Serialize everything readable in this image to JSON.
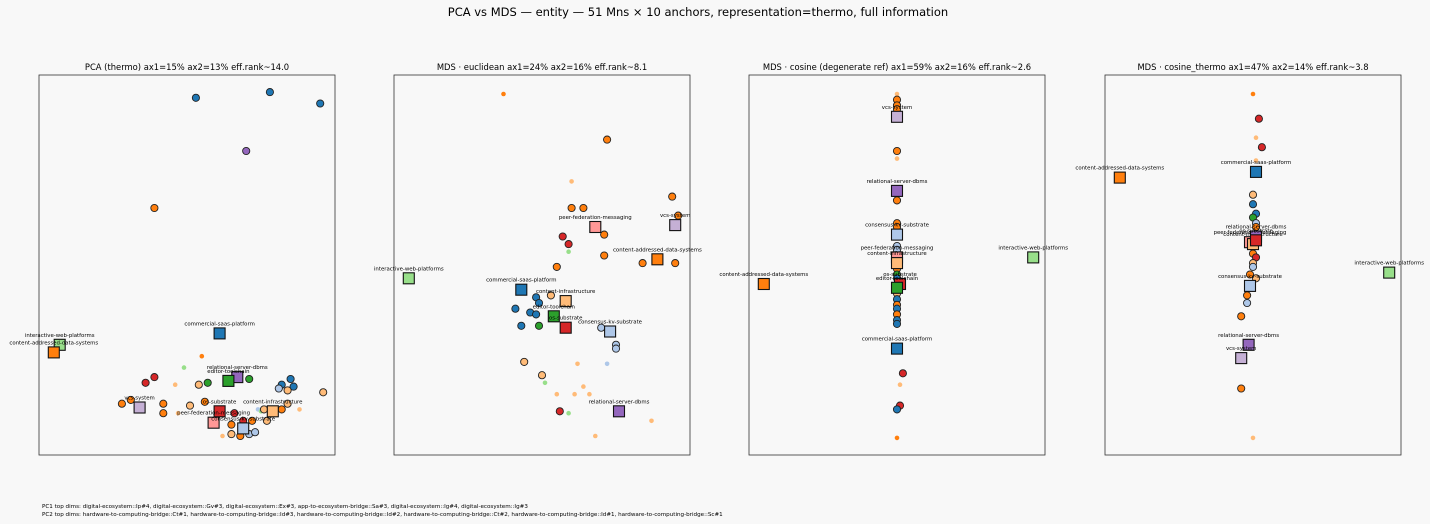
{
  "figure": {
    "suptitle": "PCA vs MDS — entity — 51 Mns × 10 anchors, representation=thermo, full information",
    "footer_pc1": "PC1 top dims: digital-ecosystem::Ip#4, digital-ecosystem::Gv#3, digital-ecosystem::Ex#3, app-to-ecosystem-bridge::Sa#3, digital-ecosystem::Ig#4, digital-ecosystem::Ig#3",
    "footer_pc2": "PC2 top dims: hardware-to-computing-bridge::Ct#1, hardware-to-computing-bridge::Id#3, hardware-to-computing-bridge::Id#2, hardware-to-computing-bridge::Ct#2, hardware-to-computing-bridge::Id#1, hardware-to-computing-bridge::Sc#1"
  },
  "colors": {
    "vcs-system": "#c5b0d5",
    "relational-server-dbms": "#9467bd",
    "commercial-saas-platform": "#1f77b4",
    "consensus-kv-substrate": "#aec7e8",
    "peer-federation-messaging": "#ff9896",
    "content-infrastructure": "#ffbb78",
    "editor-toolchain": "#2ca02c",
    "os-substrate": "#d62728",
    "interactive-web-platforms": "#98df8a",
    "content-addressed-data-systems": "#ff7f0e",
    "orange": "#ff7f0e",
    "light-orange": "#ffbb78",
    "red": "#d62728",
    "blue": "#1f77b4",
    "light-blue": "#aec7e8",
    "purple": "#9467bd",
    "green": "#2ca02c",
    "light-green": "#98df8a"
  },
  "chart_data": [
    {
      "type": "scatter",
      "title": "PCA (thermo)  ax1=15% ax2=13%  eff.rank~14.0",
      "xlim": [
        0,
        100
      ],
      "ylim": [
        0,
        100
      ],
      "anchors": [
        {
          "label": "interactive-web-platforms",
          "x": 7,
          "y": 29,
          "c": "interactive-web-platforms"
        },
        {
          "label": "content-addressed-data-systems",
          "x": 5,
          "y": 27,
          "c": "content-addressed-data-systems"
        },
        {
          "label": "commercial-saas-platform",
          "x": 61,
          "y": 32,
          "c": "commercial-saas-platform"
        },
        {
          "label": "relational-server-dbms",
          "x": 67,
          "y": 20.5,
          "c": "relational-server-dbms"
        },
        {
          "label": "editor-toolchain",
          "x": 64,
          "y": 19.5,
          "c": "editor-toolchain"
        },
        {
          "label": "vcs-system",
          "x": 34,
          "y": 12.5,
          "c": "vcs-system"
        },
        {
          "label": "os-substrate",
          "x": 61,
          "y": 11.5,
          "c": "os-substrate"
        },
        {
          "label": "content-infrastructure",
          "x": 79,
          "y": 11.5,
          "c": "content-infrastructure"
        },
        {
          "label": "peer-federation-messaging",
          "x": 59,
          "y": 8.5,
          "c": "peer-federation-messaging"
        },
        {
          "label": "consensus-kv-substrate",
          "x": 69,
          "y": 7,
          "c": "consensus-kv-substrate"
        }
      ],
      "points": [
        {
          "x": 53,
          "y": 94,
          "c": "blue"
        },
        {
          "x": 78,
          "y": 95.5,
          "c": "blue"
        },
        {
          "x": 95,
          "y": 92.5,
          "c": "blue"
        },
        {
          "x": 70,
          "y": 80,
          "c": "purple"
        },
        {
          "x": 39,
          "y": 65,
          "c": "orange"
        },
        {
          "x": 55,
          "y": 26,
          "c": "orange",
          "s": 1
        },
        {
          "x": 49,
          "y": 23,
          "c": "light-green",
          "s": 1
        },
        {
          "x": 36,
          "y": 19,
          "c": "red"
        },
        {
          "x": 39,
          "y": 20.5,
          "c": "red"
        },
        {
          "x": 46,
          "y": 18.5,
          "c": "light-orange",
          "s": 1
        },
        {
          "x": 54,
          "y": 18.5,
          "c": "light-orange"
        },
        {
          "x": 57,
          "y": 19,
          "c": "green"
        },
        {
          "x": 71,
          "y": 20,
          "c": "green"
        },
        {
          "x": 82,
          "y": 18.5,
          "c": "blue"
        },
        {
          "x": 85,
          "y": 20,
          "c": "blue"
        },
        {
          "x": 86,
          "y": 18,
          "c": "blue"
        },
        {
          "x": 81,
          "y": 17.5,
          "c": "light-blue"
        },
        {
          "x": 84,
          "y": 17,
          "c": "light-orange"
        },
        {
          "x": 96,
          "y": 16.5,
          "c": "light-orange"
        },
        {
          "x": 28,
          "y": 13.5,
          "c": "orange"
        },
        {
          "x": 31,
          "y": 14.5,
          "c": "orange"
        },
        {
          "x": 42,
          "y": 13.5,
          "c": "orange"
        },
        {
          "x": 42,
          "y": 11,
          "c": "orange"
        },
        {
          "x": 47,
          "y": 11,
          "c": "light-orange",
          "s": 1
        },
        {
          "x": 51,
          "y": 13,
          "c": "light-orange"
        },
        {
          "x": 56,
          "y": 14,
          "c": "orange"
        },
        {
          "x": 66,
          "y": 11,
          "c": "red"
        },
        {
          "x": 74,
          "y": 12,
          "c": "light-blue",
          "s": 1
        },
        {
          "x": 75,
          "y": 11.5,
          "c": "light-green",
          "s": 1
        },
        {
          "x": 76,
          "y": 12,
          "c": "light-orange"
        },
        {
          "x": 82,
          "y": 12,
          "c": "orange"
        },
        {
          "x": 88,
          "y": 12,
          "c": "light-orange",
          "s": 1
        },
        {
          "x": 84,
          "y": 13.5,
          "c": "light-orange"
        },
        {
          "x": 65,
          "y": 8,
          "c": "orange"
        },
        {
          "x": 69,
          "y": 9,
          "c": "red"
        },
        {
          "x": 72,
          "y": 9,
          "c": "orange"
        },
        {
          "x": 77,
          "y": 9,
          "c": "light-orange"
        },
        {
          "x": 65,
          "y": 5.5,
          "c": "light-orange"
        },
        {
          "x": 68,
          "y": 5,
          "c": "orange"
        },
        {
          "x": 71,
          "y": 5.5,
          "c": "light-blue"
        },
        {
          "x": 73,
          "y": 6,
          "c": "light-blue"
        },
        {
          "x": 62,
          "y": 5,
          "c": "light-orange",
          "s": 1
        }
      ]
    },
    {
      "type": "scatter",
      "title": "MDS · euclidean  ax1=24% ax2=16%  eff.rank~8.1",
      "xlim": [
        0,
        100
      ],
      "ylim": [
        0,
        100
      ],
      "anchors": [
        {
          "label": "vcs-system",
          "x": 95,
          "y": 60.5,
          "c": "vcs-system"
        },
        {
          "label": "peer-federation-messaging",
          "x": 68,
          "y": 60,
          "c": "peer-federation-messaging"
        },
        {
          "label": "content-addressed-data-systems",
          "x": 89,
          "y": 51.5,
          "c": "content-addressed-data-systems"
        },
        {
          "label": "interactive-web-platforms",
          "x": 5,
          "y": 46.5,
          "c": "interactive-web-platforms"
        },
        {
          "label": "commercial-saas-platform",
          "x": 43,
          "y": 43.5,
          "c": "commercial-saas-platform"
        },
        {
          "label": "content-infrastructure",
          "x": 58,
          "y": 40.5,
          "c": "content-infrastructure"
        },
        {
          "label": "editor-toolchain",
          "x": 54,
          "y": 36.5,
          "c": "editor-toolchain"
        },
        {
          "label": "os-substrate",
          "x": 58,
          "y": 33.5,
          "c": "os-substrate"
        },
        {
          "label": "consensus-kv-substrate",
          "x": 73,
          "y": 32.5,
          "c": "consensus-kv-substrate"
        },
        {
          "label": "relational-server-dbms",
          "x": 76,
          "y": 11.5,
          "c": "relational-server-dbms"
        }
      ],
      "points": [
        {
          "x": 37,
          "y": 95,
          "c": "orange",
          "s": 1
        },
        {
          "x": 72,
          "y": 83,
          "c": "orange"
        },
        {
          "x": 94,
          "y": 68,
          "c": "orange"
        },
        {
          "x": 96,
          "y": 63,
          "c": "orange"
        },
        {
          "x": 60,
          "y": 72,
          "c": "light-orange",
          "s": 1
        },
        {
          "x": 60,
          "y": 65,
          "c": "orange"
        },
        {
          "x": 64,
          "y": 65,
          "c": "orange"
        },
        {
          "x": 71,
          "y": 58,
          "c": "orange"
        },
        {
          "x": 57,
          "y": 57.5,
          "c": "red"
        },
        {
          "x": 59,
          "y": 55.5,
          "c": "red"
        },
        {
          "x": 59,
          "y": 53.5,
          "c": "light-green",
          "s": 1
        },
        {
          "x": 71,
          "y": 52.5,
          "c": "orange"
        },
        {
          "x": 84,
          "y": 50.5,
          "c": "orange"
        },
        {
          "x": 95,
          "y": 50.5,
          "c": "orange"
        },
        {
          "x": 55,
          "y": 49.5,
          "c": "orange"
        },
        {
          "x": 48,
          "y": 41.5,
          "c": "blue"
        },
        {
          "x": 49,
          "y": 40,
          "c": "blue"
        },
        {
          "x": 53,
          "y": 42,
          "c": "light-orange"
        },
        {
          "x": 46,
          "y": 37.5,
          "c": "blue"
        },
        {
          "x": 48,
          "y": 37,
          "c": "blue"
        },
        {
          "x": 41,
          "y": 38.5,
          "c": "blue"
        },
        {
          "x": 43,
          "y": 34,
          "c": "blue"
        },
        {
          "x": 49,
          "y": 34,
          "c": "green"
        },
        {
          "x": 70,
          "y": 33.5,
          "c": "light-blue"
        },
        {
          "x": 75,
          "y": 29,
          "c": "light-blue"
        },
        {
          "x": 75,
          "y": 28,
          "c": "light-blue"
        },
        {
          "x": 72,
          "y": 24,
          "c": "light-blue",
          "s": 1
        },
        {
          "x": 44,
          "y": 24.5,
          "c": "light-orange"
        },
        {
          "x": 50,
          "y": 21,
          "c": "light-orange"
        },
        {
          "x": 51,
          "y": 19,
          "c": "light-green",
          "s": 1
        },
        {
          "x": 62,
          "y": 24,
          "c": "light-orange",
          "s": 1
        },
        {
          "x": 64,
          "y": 18,
          "c": "light-orange",
          "s": 1
        },
        {
          "x": 61,
          "y": 16,
          "c": "light-orange",
          "s": 1
        },
        {
          "x": 66,
          "y": 16,
          "c": "light-orange",
          "s": 1
        },
        {
          "x": 55,
          "y": 16,
          "c": "light-orange",
          "s": 1
        },
        {
          "x": 56,
          "y": 11.5,
          "c": "red"
        },
        {
          "x": 59,
          "y": 11,
          "c": "light-green",
          "s": 1
        },
        {
          "x": 87,
          "y": 9,
          "c": "light-orange",
          "s": 1
        },
        {
          "x": 68,
          "y": 5,
          "c": "light-orange",
          "s": 1
        }
      ]
    },
    {
      "type": "scatter",
      "title": "MDS · cosine (degenerate ref)  ax1=59% ax2=16%  eff.rank~2.6",
      "xlim": [
        0,
        100
      ],
      "ylim": [
        0,
        100
      ],
      "anchors": [
        {
          "label": "vcs-system",
          "x": 50,
          "y": 89,
          "c": "vcs-system"
        },
        {
          "label": "relational-server-dbms",
          "x": 50,
          "y": 69.5,
          "c": "relational-server-dbms"
        },
        {
          "label": "consensus-kv-substrate",
          "x": 50,
          "y": 58,
          "c": "consensus-kv-substrate"
        },
        {
          "label": "interactive-web-platforms",
          "x": 96,
          "y": 52,
          "c": "interactive-web-platforms"
        },
        {
          "label": "peer-federation-messaging",
          "x": 50,
          "y": 52,
          "c": "peer-federation-messaging"
        },
        {
          "label": "content-infrastructure",
          "x": 50,
          "y": 50.5,
          "c": "content-infrastructure"
        },
        {
          "label": "content-addressed-data-systems",
          "x": 5,
          "y": 45,
          "c": "content-addressed-data-systems"
        },
        {
          "label": "os-substrate",
          "x": 51,
          "y": 45,
          "c": "os-substrate"
        },
        {
          "label": "editor-toolchain",
          "x": 50,
          "y": 44,
          "c": "editor-toolchain"
        },
        {
          "label": "commercial-saas-platform",
          "x": 50,
          "y": 28,
          "c": "commercial-saas-platform"
        }
      ],
      "points": [
        {
          "x": 50,
          "y": 95,
          "c": "light-orange",
          "s": 1
        },
        {
          "x": 50,
          "y": 93.5,
          "c": "orange"
        },
        {
          "x": 50,
          "y": 92,
          "c": "orange"
        },
        {
          "x": 50,
          "y": 91,
          "c": "orange"
        },
        {
          "x": 50,
          "y": 80,
          "c": "orange"
        },
        {
          "x": 50,
          "y": 78,
          "c": "light-orange",
          "s": 1
        },
        {
          "x": 50,
          "y": 67,
          "c": "orange"
        },
        {
          "x": 50,
          "y": 61,
          "c": "orange"
        },
        {
          "x": 50,
          "y": 60,
          "c": "orange"
        },
        {
          "x": 50,
          "y": 55,
          "c": "light-blue"
        },
        {
          "x": 50,
          "y": 54,
          "c": "light-blue"
        },
        {
          "x": 50,
          "y": 49,
          "c": "orange"
        },
        {
          "x": 50,
          "y": 47.5,
          "c": "green"
        },
        {
          "x": 50,
          "y": 46.5,
          "c": "blue"
        },
        {
          "x": 50,
          "y": 42.5,
          "c": "light-orange"
        },
        {
          "x": 50,
          "y": 41,
          "c": "blue"
        },
        {
          "x": 50,
          "y": 39.5,
          "c": "orange"
        },
        {
          "x": 50,
          "y": 38.5,
          "c": "blue"
        },
        {
          "x": 50,
          "y": 37,
          "c": "orange"
        },
        {
          "x": 50,
          "y": 35.5,
          "c": "blue"
        },
        {
          "x": 50,
          "y": 34.5,
          "c": "blue"
        },
        {
          "x": 52,
          "y": 21.5,
          "c": "red"
        },
        {
          "x": 51,
          "y": 18.5,
          "c": "light-orange",
          "s": 1
        },
        {
          "x": 51,
          "y": 13,
          "c": "red"
        },
        {
          "x": 50,
          "y": 12,
          "c": "blue"
        },
        {
          "x": 50,
          "y": 4.5,
          "c": "orange",
          "s": 1
        }
      ]
    },
    {
      "type": "scatter",
      "title": "MDS · cosine_thermo  ax1=47% ax2=14%  eff.rank~3.8",
      "xlim": [
        0,
        100
      ],
      "ylim": [
        0,
        100
      ],
      "anchors": [
        {
          "label": "content-addressed-data-systems",
          "x": 5,
          "y": 73,
          "c": "content-addressed-data-systems"
        },
        {
          "label": "commercial-saas-platform",
          "x": 51,
          "y": 74.5,
          "c": "commercial-saas-platform"
        },
        {
          "label": "peer-federation-messaging",
          "x": 49,
          "y": 56,
          "c": "peer-federation-messaging"
        },
        {
          "label": "content-infrastructure",
          "x": 50,
          "y": 55.5,
          "c": "content-infrastructure"
        },
        {
          "label": "relational-server-dbms",
          "x": 51,
          "y": 57.5,
          "c": "relational-server-dbms"
        },
        {
          "label": "os-substrate",
          "x": 51,
          "y": 56.5,
          "c": "os-substrate"
        },
        {
          "label": "interactive-web-platforms",
          "x": 96,
          "y": 48,
          "c": "interactive-web-platforms"
        },
        {
          "label": "consensus-kv-substrate",
          "x": 49,
          "y": 44.5,
          "c": "consensus-kv-substrate"
        },
        {
          "label": "relational-server-dbms",
          "x": 48.5,
          "y": 29,
          "c": "relational-server-dbms"
        },
        {
          "label": "vcs-system",
          "x": 46,
          "y": 25.5,
          "c": "vcs-system"
        }
      ],
      "points": [
        {
          "x": 50,
          "y": 95,
          "c": "orange",
          "s": 1
        },
        {
          "x": 52,
          "y": 88.5,
          "c": "red"
        },
        {
          "x": 51,
          "y": 83.5,
          "c": "light-orange",
          "s": 1
        },
        {
          "x": 53,
          "y": 81,
          "c": "red"
        },
        {
          "x": 51,
          "y": 77.5,
          "c": "light-orange",
          "s": 1
        },
        {
          "x": 50,
          "y": 68.5,
          "c": "light-orange"
        },
        {
          "x": 50,
          "y": 66,
          "c": "blue"
        },
        {
          "x": 51,
          "y": 63.5,
          "c": "blue"
        },
        {
          "x": 50,
          "y": 62.5,
          "c": "green"
        },
        {
          "x": 51,
          "y": 61,
          "c": "light-blue"
        },
        {
          "x": 51,
          "y": 60,
          "c": "orange"
        },
        {
          "x": 50,
          "y": 53,
          "c": "orange"
        },
        {
          "x": 51,
          "y": 52,
          "c": "red"
        },
        {
          "x": 50,
          "y": 50.5,
          "c": "light-orange"
        },
        {
          "x": 50,
          "y": 49.5,
          "c": "light-blue"
        },
        {
          "x": 49,
          "y": 47.5,
          "c": "orange"
        },
        {
          "x": 51,
          "y": 46.5,
          "c": "light-orange"
        },
        {
          "x": 49,
          "y": 44,
          "c": "light-orange",
          "s": 1
        },
        {
          "x": 48,
          "y": 42,
          "c": "orange"
        },
        {
          "x": 48,
          "y": 40,
          "c": "light-blue"
        },
        {
          "x": 46,
          "y": 36.5,
          "c": "orange"
        },
        {
          "x": 46,
          "y": 17.5,
          "c": "orange"
        },
        {
          "x": 50,
          "y": 4.5,
          "c": "light-orange",
          "s": 1
        }
      ]
    }
  ]
}
